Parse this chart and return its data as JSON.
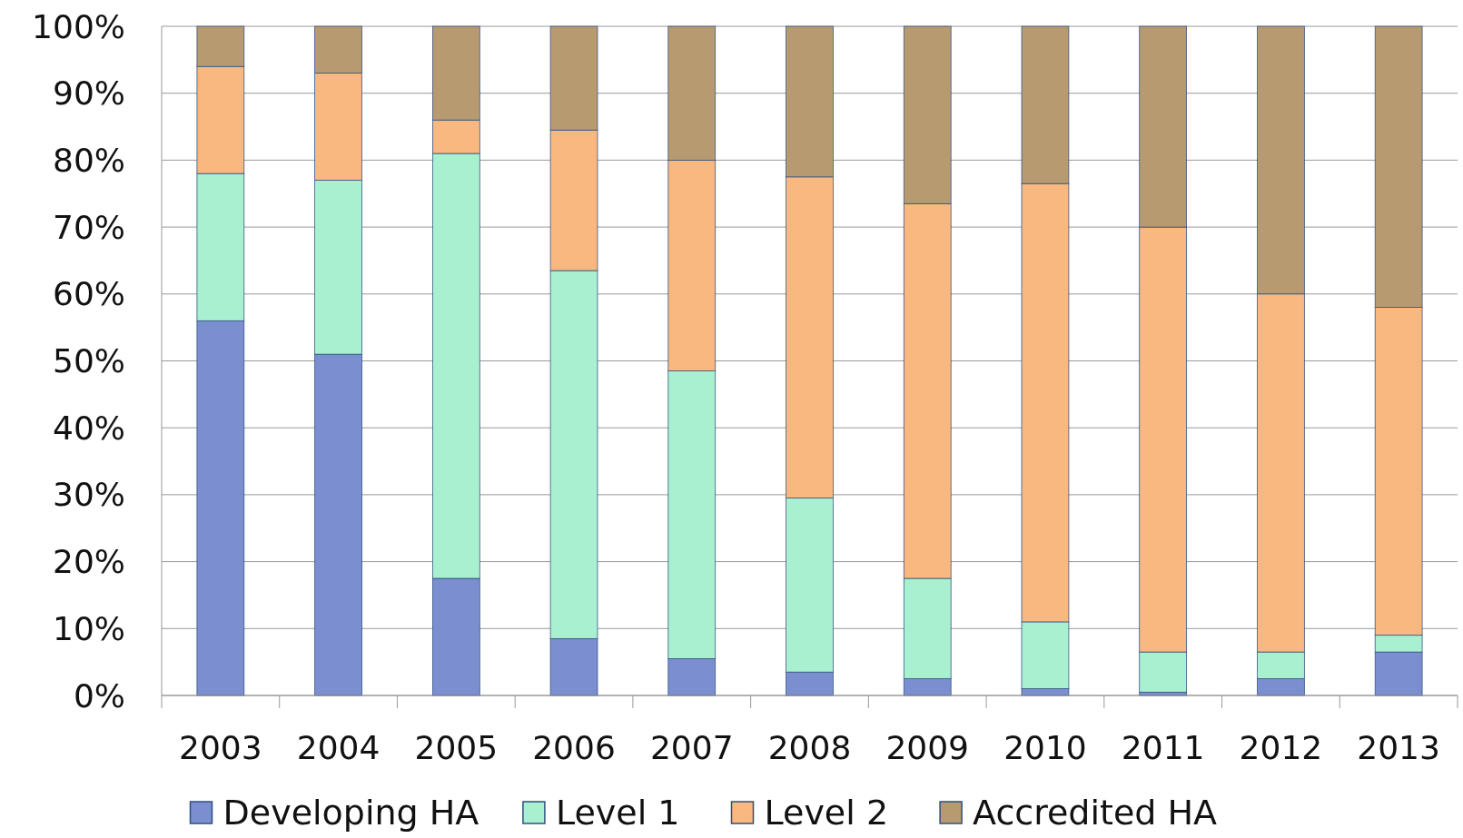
{
  "chart_data": {
    "type": "bar",
    "stacked": true,
    "categories": [
      "2003",
      "2004",
      "2005",
      "2006",
      "2007",
      "2008",
      "2009",
      "2010",
      "2011",
      "2012",
      "2013"
    ],
    "series": [
      {
        "name": "Developing HA",
        "color": "#7b8fd0",
        "values": [
          56,
          51,
          17.5,
          8.5,
          5.5,
          3.5,
          2.5,
          1,
          0.5,
          2.5,
          6.5
        ]
      },
      {
        "name": "Level 1",
        "color": "#a8f0d0",
        "values": [
          22,
          26,
          63.5,
          55,
          43,
          26,
          15,
          10,
          6,
          4,
          2.5
        ]
      },
      {
        "name": "Level 2",
        "color": "#f8b880",
        "values": [
          16,
          16,
          5,
          21,
          31.5,
          48,
          56,
          65.5,
          63.5,
          53.5,
          49
        ]
      },
      {
        "name": "Accredited HA",
        "color": "#b89a70",
        "values": [
          6,
          7,
          14,
          15.5,
          20,
          22.5,
          26.5,
          23.5,
          30,
          40,
          42
        ]
      }
    ],
    "ylim": [
      0,
      100
    ],
    "yticks": [
      {
        "value": 0,
        "label": "0%"
      },
      {
        "value": 10,
        "label": "10%"
      },
      {
        "value": 20,
        "label": "20%"
      },
      {
        "value": 30,
        "label": "30%"
      },
      {
        "value": 40,
        "label": "40%"
      },
      {
        "value": 50,
        "label": "50%"
      },
      {
        "value": 60,
        "label": "60%"
      },
      {
        "value": 70,
        "label": "70%"
      },
      {
        "value": 80,
        "label": "80%"
      },
      {
        "value": 90,
        "label": "90%"
      },
      {
        "value": 100,
        "label": "100%"
      }
    ],
    "grid": "y",
    "legend": "bottom"
  }
}
